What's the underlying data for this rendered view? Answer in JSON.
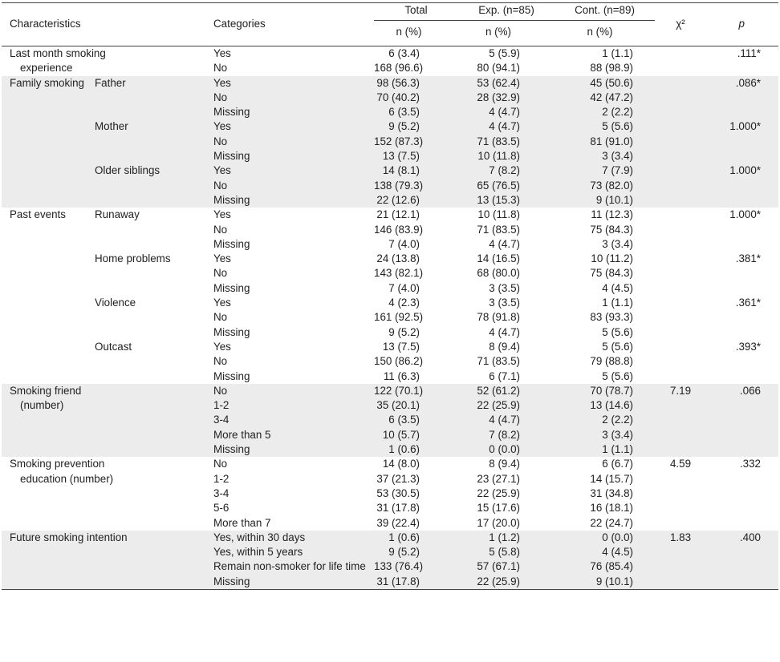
{
  "header": {
    "characteristics": "Characteristics",
    "categories": "Categories",
    "total": "Total",
    "exp": "Exp. (n=85)",
    "cont": "Cont. (n=89)",
    "n_pct": "n (%)",
    "chi": "χ²",
    "p": "p"
  },
  "groups": [
    {
      "characteristic": [
        "Last month smoking",
        "experience"
      ],
      "shaded": false,
      "rows": [
        {
          "sub": "",
          "categories": [
            "Yes",
            "No"
          ],
          "total": [
            "6 (3.4)",
            "168 (96.6)"
          ],
          "exp": [
            "5 (5.9)",
            "80 (94.1)"
          ],
          "cont": [
            "1 (1.1)",
            "88 (98.9)"
          ],
          "chi": "",
          "p": ".111*"
        }
      ]
    },
    {
      "characteristic": [
        "Family smoking"
      ],
      "shaded": true,
      "rows": [
        {
          "sub": "Father",
          "categories": [
            "Yes",
            "No",
            "Missing"
          ],
          "total": [
            "98 (56.3)",
            "70 (40.2)",
            "6 (3.5)"
          ],
          "exp": [
            "53 (62.4)",
            "28 (32.9)",
            "4 (4.7)"
          ],
          "cont": [
            "45 (50.6)",
            "42 (47.2)",
            "2 (2.2)"
          ],
          "chi": "",
          "p": ".086*"
        },
        {
          "sub": "Mother",
          "categories": [
            "Yes",
            "No",
            "Missing"
          ],
          "total": [
            "9 (5.2)",
            "152 (87.3)",
            "13 (7.5)"
          ],
          "exp": [
            "4 (4.7)",
            "71 (83.5)",
            "10 (11.8)"
          ],
          "cont": [
            "5 (5.6)",
            "81 (91.0)",
            "3 (3.4)"
          ],
          "chi": "",
          "p": "1.000*"
        },
        {
          "sub": "Older siblings",
          "categories": [
            "Yes",
            "No",
            "Missing"
          ],
          "total": [
            "14 (8.1)",
            "138 (79.3)",
            "22 (12.6)"
          ],
          "exp": [
            "7 (8.2)",
            "65 (76.5)",
            "13 (15.3)"
          ],
          "cont": [
            "7 (7.9)",
            "73 (82.0)",
            "9 (10.1)"
          ],
          "chi": "",
          "p": "1.000*"
        }
      ]
    },
    {
      "characteristic": [
        "Past events"
      ],
      "shaded": false,
      "rows": [
        {
          "sub": "Runaway",
          "categories": [
            "Yes",
            "No",
            "Missing"
          ],
          "total": [
            "21 (12.1)",
            "146 (83.9)",
            "7 (4.0)"
          ],
          "exp": [
            "10 (11.8)",
            "71 (83.5)",
            "4 (4.7)"
          ],
          "cont": [
            "11 (12.3)",
            "75 (84.3)",
            "3 (3.4)"
          ],
          "chi": "",
          "p": "1.000*"
        },
        {
          "sub": "Home problems",
          "categories": [
            "Yes",
            "No",
            "Missing"
          ],
          "total": [
            "24 (13.8)",
            "143 (82.1)",
            "7 (4.0)"
          ],
          "exp": [
            "14 (16.5)",
            "68 (80.0)",
            "3 (3.5)"
          ],
          "cont": [
            "10 (11.2)",
            "75 (84.3)",
            "4 (4.5)"
          ],
          "chi": "",
          "p": ".381*"
        },
        {
          "sub": "Violence",
          "categories": [
            "Yes",
            "No",
            "Missing"
          ],
          "total": [
            "4 (2.3)",
            "161 (92.5)",
            "9 (5.2)"
          ],
          "exp": [
            "3 (3.5)",
            "78 (91.8)",
            "4 (4.7)"
          ],
          "cont": [
            "1 (1.1)",
            "83 (93.3)",
            "5 (5.6)"
          ],
          "chi": "",
          "p": ".361*"
        },
        {
          "sub": "Outcast",
          "categories": [
            "Yes",
            "No",
            "Missing"
          ],
          "total": [
            "13 (7.5)",
            "150 (86.2)",
            "11 (6.3)"
          ],
          "exp": [
            "8 (9.4)",
            "71 (83.5)",
            "6 (7.1)"
          ],
          "cont": [
            "5 (5.6)",
            "79 (88.8)",
            "5 (5.6)"
          ],
          "chi": "",
          "p": ".393*"
        }
      ]
    },
    {
      "characteristic": [
        "Smoking friend",
        "(number)"
      ],
      "shaded": true,
      "rows": [
        {
          "sub": "",
          "categories": [
            "No",
            "1-2",
            "3-4",
            "More than 5",
            "Missing"
          ],
          "total": [
            "122 (70.1)",
            "35 (20.1)",
            "6 (3.5)",
            "10 (5.7)",
            "1 (0.6)"
          ],
          "exp": [
            "52 (61.2)",
            "22 (25.9)",
            "4 (4.7)",
            "7 (8.2)",
            "0 (0.0)"
          ],
          "cont": [
            "70 (78.7)",
            "13 (14.6)",
            "2 (2.2)",
            "3 (3.4)",
            "1 (1.1)"
          ],
          "chi": "7.19",
          "p": ".066"
        }
      ]
    },
    {
      "characteristic": [
        "Smoking prevention",
        "education (number)"
      ],
      "shaded": false,
      "rows": [
        {
          "sub": "",
          "categories": [
            "No",
            "1-2",
            "3-4",
            "5-6",
            "More than 7"
          ],
          "total": [
            "14 (8.0)",
            "37 (21.3)",
            "53 (30.5)",
            "31 (17.8)",
            "39 (22.4)"
          ],
          "exp": [
            "8 (9.4)",
            "23 (27.1)",
            "22 (25.9)",
            "15 (17.6)",
            "17 (20.0)"
          ],
          "cont": [
            "6 (6.7)",
            "14 (15.7)",
            "31 (34.8)",
            "16 (18.1)",
            "22 (24.7)"
          ],
          "chi": "4.59",
          "p": ".332"
        }
      ]
    },
    {
      "characteristic": [
        "Future smoking intention"
      ],
      "shaded": true,
      "rows": [
        {
          "sub": "",
          "categories": [
            "Yes, within 30 days",
            "Yes, within 5 years",
            "Remain non-smoker for life time",
            "Missing"
          ],
          "total": [
            "1 (0.6)",
            "9 (5.2)",
            "133 (76.4)",
            "31 (17.8)"
          ],
          "exp": [
            "1 (1.2)",
            "5 (5.8)",
            "57 (67.1)",
            "22 (25.9)"
          ],
          "cont": [
            "0 (0.0)",
            "4 (4.5)",
            "76 (85.4)",
            "9 (10.1)"
          ],
          "chi": "1.83",
          "p": ".400"
        }
      ]
    }
  ]
}
